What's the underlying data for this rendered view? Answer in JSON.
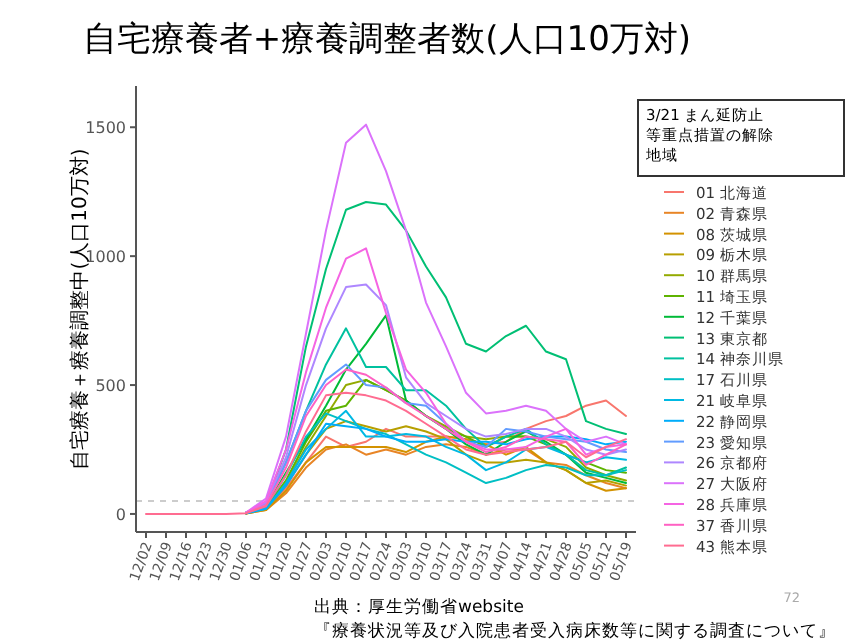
{
  "chart_data": {
    "type": "line",
    "title": "自宅療養者+療養調整者数(人口10万対)",
    "ylabel": "自宅療養＋療養調整中(人口10万対)",
    "legend_title": "3/21 まん延防止等重点措置の解除地域",
    "legend": "right",
    "grid": false,
    "ylim": [
      -70,
      1660
    ],
    "yticks": [
      0,
      500,
      1000,
      1500
    ],
    "categories": [
      "12/02",
      "12/09",
      "12/16",
      "12/23",
      "12/30",
      "01/06",
      "01/13",
      "01/20",
      "01/27",
      "02/03",
      "02/10",
      "02/17",
      "02/24",
      "03/03",
      "03/10",
      "03/17",
      "03/24",
      "03/31",
      "04/07",
      "04/14",
      "04/21",
      "04/28",
      "05/05",
      "05/12",
      "05/19"
    ],
    "ref_lines": [
      {
        "axis": "y",
        "value": 50,
        "color": "#cccccc",
        "line_style": "dashed"
      }
    ],
    "annotations": [
      "出典：厚生労働省website",
      "『療養状況等及び入院患者受入病床数等に関する調査について』",
      "72"
    ],
    "series": [
      {
        "name": "01 北海道",
        "color": "#f8766d",
        "values": [
          null,
          null,
          null,
          null,
          null,
          3,
          20,
          100,
          200,
          300,
          260,
          280,
          330,
          300,
          300,
          300,
          290,
          270,
          280,
          330,
          360,
          380,
          420,
          440,
          380
        ]
      },
      {
        "name": "02 青森県",
        "color": "#e88526",
        "values": [
          null,
          null,
          null,
          null,
          null,
          2,
          15,
          80,
          180,
          250,
          270,
          230,
          250,
          230,
          260,
          270,
          260,
          230,
          250,
          250,
          200,
          190,
          150,
          120,
          100
        ]
      },
      {
        "name": "08 茨城県",
        "color": "#d39200",
        "values": [
          null,
          null,
          null,
          null,
          null,
          2,
          15,
          90,
          200,
          260,
          260,
          260,
          260,
          240,
          280,
          300,
          290,
          270,
          230,
          260,
          200,
          170,
          120,
          90,
          100
        ]
      },
      {
        "name": "09 栃木県",
        "color": "#b79f00",
        "values": [
          null,
          null,
          null,
          null,
          null,
          2,
          20,
          110,
          230,
          330,
          360,
          340,
          320,
          340,
          320,
          290,
          230,
          200,
          200,
          210,
          200,
          170,
          120,
          130,
          110
        ]
      },
      {
        "name": "10 群馬県",
        "color": "#93aa00",
        "values": [
          null,
          null,
          null,
          null,
          null,
          3,
          25,
          120,
          260,
          380,
          500,
          520,
          480,
          440,
          380,
          340,
          300,
          290,
          300,
          300,
          290,
          260,
          180,
          150,
          130
        ]
      },
      {
        "name": "11 埼玉県",
        "color": "#5eb300",
        "values": [
          null,
          null,
          null,
          null,
          null,
          3,
          25,
          130,
          280,
          400,
          420,
          520,
          480,
          440,
          380,
          330,
          300,
          260,
          300,
          300,
          270,
          230,
          200,
          170,
          160
        ]
      },
      {
        "name": "12 千葉県",
        "color": "#00ba38",
        "values": [
          null,
          null,
          null,
          null,
          null,
          5,
          30,
          160,
          290,
          420,
          560,
          660,
          770,
          440,
          380,
          330,
          270,
          230,
          280,
          320,
          280,
          230,
          160,
          140,
          120
        ]
      },
      {
        "name": "13 東京都",
        "color": "#00bf74",
        "values": [
          null,
          null,
          null,
          null,
          null,
          5,
          40,
          250,
          650,
          950,
          1180,
          1210,
          1200,
          1100,
          960,
          840,
          660,
          630,
          690,
          730,
          630,
          600,
          360,
          330,
          310
        ]
      },
      {
        "name": "14 神奈川県",
        "color": "#00c19f",
        "values": [
          null,
          null,
          null,
          null,
          null,
          5,
          35,
          200,
          400,
          580,
          720,
          570,
          570,
          480,
          480,
          420,
          330,
          260,
          300,
          330,
          270,
          230,
          170,
          150,
          180
        ]
      },
      {
        "name": "17 石川県",
        "color": "#00bfc4",
        "values": [
          null,
          null,
          null,
          null,
          null,
          3,
          25,
          150,
          300,
          390,
          360,
          330,
          310,
          270,
          230,
          200,
          160,
          120,
          140,
          170,
          190,
          180,
          150,
          150,
          170
        ]
      },
      {
        "name": "21 岐阜県",
        "color": "#00b9e3",
        "values": [
          null,
          null,
          null,
          null,
          null,
          3,
          20,
          120,
          250,
          330,
          400,
          300,
          300,
          310,
          300,
          260,
          230,
          170,
          200,
          250,
          260,
          230,
          200,
          220,
          210
        ]
      },
      {
        "name": "22 静岡県",
        "color": "#00adfa",
        "values": [
          null,
          null,
          null,
          null,
          null,
          3,
          20,
          110,
          230,
          350,
          340,
          330,
          300,
          280,
          280,
          290,
          280,
          280,
          270,
          290,
          300,
          300,
          290,
          270,
          280
        ]
      },
      {
        "name": "23 愛知県",
        "color": "#619cff",
        "values": [
          null,
          null,
          null,
          null,
          null,
          5,
          40,
          200,
          400,
          520,
          580,
          500,
          490,
          430,
          420,
          350,
          280,
          260,
          330,
          320,
          300,
          290,
          280,
          250,
          240
        ]
      },
      {
        "name": "26 京都府",
        "color": "#ae87ff",
        "values": [
          null,
          null,
          null,
          null,
          null,
          5,
          45,
          220,
          500,
          720,
          880,
          890,
          810,
          530,
          430,
          380,
          330,
          300,
          310,
          330,
          330,
          300,
          250,
          230,
          250
        ]
      },
      {
        "name": "27 大阪府",
        "color": "#db72fb",
        "values": [
          null,
          null,
          null,
          null,
          null,
          5,
          60,
          300,
          700,
          1100,
          1440,
          1510,
          1330,
          1100,
          820,
          650,
          470,
          390,
          400,
          420,
          400,
          330,
          280,
          300,
          270
        ]
      },
      {
        "name": "28 兵庫県",
        "color": "#f564e3",
        "values": [
          null,
          null,
          null,
          null,
          null,
          5,
          50,
          250,
          550,
          800,
          990,
          1030,
          780,
          560,
          470,
          350,
          280,
          250,
          250,
          260,
          300,
          330,
          230,
          260,
          270
        ]
      },
      {
        "name": "37 香川県",
        "color": "#ff61c3",
        "values": [
          null,
          null,
          null,
          null,
          null,
          3,
          35,
          180,
          380,
          500,
          560,
          540,
          490,
          430,
          380,
          330,
          280,
          240,
          260,
          300,
          290,
          280,
          190,
          230,
          270
        ]
      },
      {
        "name": "43 熊本県",
        "color": "#ff6c91",
        "values": [
          0,
          0,
          0,
          0,
          0,
          3,
          30,
          150,
          320,
          460,
          470,
          460,
          440,
          400,
          350,
          300,
          250,
          230,
          240,
          250,
          260,
          280,
          220,
          260,
          290
        ]
      }
    ]
  }
}
